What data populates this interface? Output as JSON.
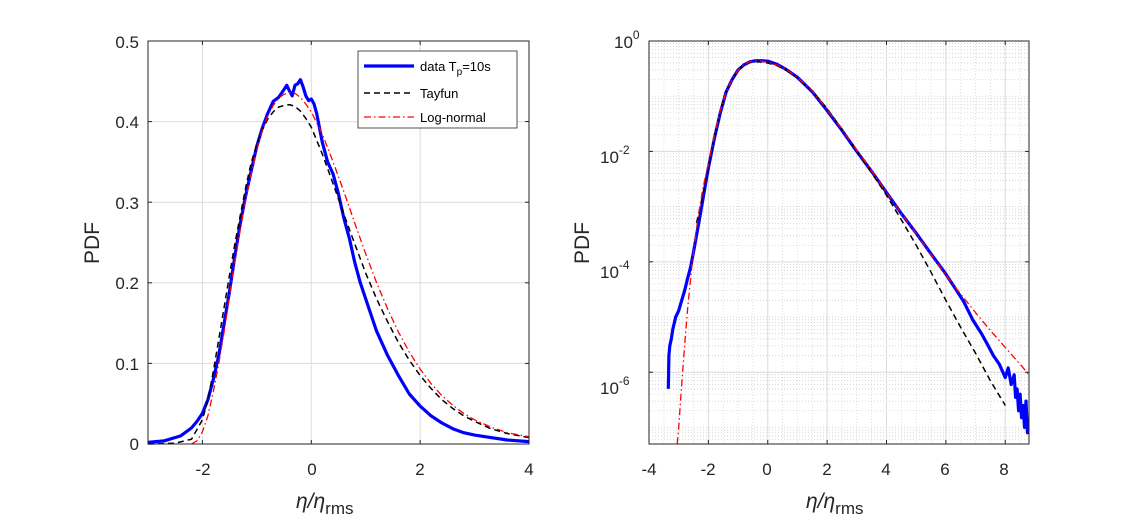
{
  "chart_data": [
    {
      "type": "line",
      "yscale": "linear",
      "xlabel": "η/η",
      "xlabel_sub": "rms",
      "ylabel": "PDF",
      "xlim": [
        -3,
        4
      ],
      "ylim": [
        0,
        0.5
      ],
      "xticks": [
        -2,
        0,
        2,
        4
      ],
      "xtick_labels": [
        "-2",
        "0",
        "2",
        "4"
      ],
      "yticks": [
        0,
        0.1,
        0.2,
        0.3,
        0.4,
        0.5
      ],
      "ytick_labels": [
        "0",
        "0.1",
        "0.2",
        "0.3",
        "0.4",
        "0.5"
      ],
      "grid": true,
      "legend": {
        "position": "top-right",
        "entries": [
          {
            "series": "data",
            "label_main": "data T",
            "label_sub": "p",
            "label_tail": "=10s"
          },
          {
            "series": "tayfun",
            "label_main": "Tayfun"
          },
          {
            "series": "lognormal",
            "label_main": "Log-normal"
          }
        ]
      },
      "series": [
        {
          "name": "data",
          "label": "data Tp=10s",
          "color": "#0000ff",
          "style": "solid",
          "x": [
            -3.0,
            -2.7,
            -2.4,
            -2.2,
            -2.1,
            -2.0,
            -1.9,
            -1.8,
            -1.7,
            -1.6,
            -1.5,
            -1.4,
            -1.3,
            -1.2,
            -1.1,
            -1.0,
            -0.9,
            -0.8,
            -0.7,
            -0.6,
            -0.5,
            -0.45,
            -0.4,
            -0.35,
            -0.3,
            -0.25,
            -0.2,
            -0.15,
            -0.1,
            -0.05,
            0.0,
            0.05,
            0.1,
            0.2,
            0.3,
            0.4,
            0.5,
            0.6,
            0.7,
            0.8,
            0.9,
            1.0,
            1.2,
            1.4,
            1.6,
            1.8,
            2.0,
            2.2,
            2.4,
            2.6,
            2.8,
            3.0,
            3.3,
            3.6,
            4.0
          ],
          "y": [
            0.002,
            0.004,
            0.01,
            0.02,
            0.028,
            0.038,
            0.055,
            0.08,
            0.11,
            0.15,
            0.19,
            0.235,
            0.275,
            0.31,
            0.34,
            0.37,
            0.392,
            0.41,
            0.425,
            0.43,
            0.44,
            0.445,
            0.438,
            0.432,
            0.445,
            0.447,
            0.452,
            0.443,
            0.432,
            0.426,
            0.428,
            0.422,
            0.41,
            0.375,
            0.35,
            0.335,
            0.31,
            0.28,
            0.255,
            0.225,
            0.2,
            0.18,
            0.14,
            0.11,
            0.085,
            0.062,
            0.047,
            0.035,
            0.026,
            0.019,
            0.014,
            0.011,
            0.008,
            0.005,
            0.003
          ]
        },
        {
          "name": "tayfun",
          "label": "Tayfun",
          "color": "#000000",
          "style": "dashed",
          "x": [
            -3.0,
            -2.5,
            -2.2,
            -2.0,
            -1.9,
            -1.8,
            -1.7,
            -1.6,
            -1.5,
            -1.4,
            -1.3,
            -1.2,
            -1.1,
            -1.0,
            -0.9,
            -0.8,
            -0.7,
            -0.6,
            -0.5,
            -0.4,
            -0.3,
            -0.2,
            -0.1,
            0.0,
            0.2,
            0.4,
            0.6,
            0.8,
            1.0,
            1.2,
            1.4,
            1.6,
            1.8,
            2.0,
            2.2,
            2.4,
            2.6,
            2.8,
            3.0,
            3.3,
            3.6,
            4.0
          ],
          "y": [
            0.0,
            0.001,
            0.006,
            0.03,
            0.055,
            0.09,
            0.13,
            0.17,
            0.21,
            0.25,
            0.285,
            0.32,
            0.35,
            0.372,
            0.39,
            0.403,
            0.412,
            0.418,
            0.42,
            0.421,
            0.419,
            0.413,
            0.404,
            0.393,
            0.36,
            0.323,
            0.285,
            0.248,
            0.212,
            0.18,
            0.152,
            0.126,
            0.104,
            0.085,
            0.069,
            0.055,
            0.044,
            0.035,
            0.028,
            0.019,
            0.013,
            0.008
          ]
        },
        {
          "name": "lognormal",
          "label": "Log-normal",
          "color": "#ff0000",
          "style": "dashdot",
          "x": [
            -2.2,
            -2.1,
            -2.0,
            -1.9,
            -1.8,
            -1.7,
            -1.6,
            -1.5,
            -1.4,
            -1.3,
            -1.2,
            -1.1,
            -1.0,
            -0.9,
            -0.8,
            -0.7,
            -0.6,
            -0.5,
            -0.4,
            -0.3,
            -0.2,
            -0.1,
            0.0,
            0.2,
            0.4,
            0.6,
            0.8,
            1.0,
            1.2,
            1.4,
            1.6,
            1.8,
            2.0,
            2.2,
            2.4,
            2.6,
            2.8,
            3.0,
            3.3,
            3.6,
            4.0
          ],
          "y": [
            0.0,
            0.004,
            0.015,
            0.035,
            0.065,
            0.1,
            0.14,
            0.185,
            0.228,
            0.268,
            0.305,
            0.337,
            0.365,
            0.389,
            0.407,
            0.42,
            0.429,
            0.434,
            0.436,
            0.435,
            0.43,
            0.422,
            0.412,
            0.385,
            0.35,
            0.313,
            0.274,
            0.236,
            0.2,
            0.168,
            0.139,
            0.114,
            0.093,
            0.075,
            0.06,
            0.048,
            0.038,
            0.03,
            0.021,
            0.014,
            0.009
          ]
        }
      ]
    },
    {
      "type": "line",
      "yscale": "log",
      "xlabel": "η/η",
      "xlabel_sub": "rms",
      "ylabel": "PDF",
      "xlim": [
        -4,
        8.8
      ],
      "ylim_log10": [
        -7.3,
        0
      ],
      "xticks": [
        -4,
        -2,
        0,
        2,
        4,
        6,
        8
      ],
      "xtick_labels": [
        "-4",
        "-2",
        "0",
        "2",
        "4",
        "6",
        "8"
      ],
      "yticks_log10": [
        -6,
        -4,
        -2,
        0
      ],
      "ytick_base": "10",
      "ytick_exponents": [
        "-6",
        "-4",
        "-2",
        "0"
      ],
      "grid": true,
      "minor_grid": true,
      "series": [
        {
          "name": "data",
          "color": "#0000ff",
          "style": "solid",
          "x": [
            -3.35,
            -3.33,
            -3.3,
            -3.25,
            -3.2,
            -3.1,
            -3.0,
            -2.9,
            -2.8,
            -2.7,
            -2.6,
            -2.5,
            -2.4,
            -2.3,
            -2.2,
            -2.1,
            -2.0,
            -1.8,
            -1.6,
            -1.4,
            -1.2,
            -1.0,
            -0.8,
            -0.6,
            -0.4,
            -0.2,
            0.0,
            0.3,
            0.6,
            1.0,
            1.5,
            2.0,
            2.5,
            3.0,
            3.5,
            4.0,
            4.5,
            5.0,
            5.5,
            6.0,
            6.3,
            6.6,
            6.9,
            7.2,
            7.4,
            7.6,
            7.8,
            8.0,
            8.1,
            8.2,
            8.3,
            8.35,
            8.4,
            8.45,
            8.5,
            8.55,
            8.6,
            8.65,
            8.7,
            8.75,
            8.8
          ],
          "y": [
            5e-07,
            2e-06,
            3e-06,
            4e-06,
            6e-06,
            1e-05,
            1.3e-05,
            2e-05,
            3e-05,
            5e-05,
            8e-05,
            0.00015,
            0.0003,
            0.0006,
            0.0012,
            0.0025,
            0.005,
            0.017,
            0.05,
            0.12,
            0.2,
            0.3,
            0.37,
            0.42,
            0.44,
            0.44,
            0.43,
            0.38,
            0.31,
            0.22,
            0.12,
            0.055,
            0.024,
            0.01,
            0.0043,
            0.0018,
            0.00075,
            0.00033,
            0.00014,
            6e-05,
            3.4e-05,
            1.9e-05,
            9e-06,
            5e-06,
            3.2e-06,
            2e-06,
            1.4e-06,
            8e-07,
            1.2e-06,
            6e-07,
            9e-07,
            3.5e-07,
            5e-07,
            2e-07,
            4e-07,
            1.5e-07,
            2.5e-07,
            1e-07,
            3e-07,
            8e-08,
            1.5e-07
          ]
        },
        {
          "name": "tayfun",
          "color": "#000000",
          "style": "dashed",
          "x": [
            -2.4,
            -2.2,
            -2.0,
            -1.8,
            -1.6,
            -1.4,
            -1.2,
            -1.0,
            -0.8,
            -0.6,
            -0.4,
            -0.2,
            0.0,
            0.3,
            0.6,
            1.0,
            1.5,
            2.0,
            2.5,
            3.0,
            3.5,
            4.0,
            4.5,
            5.0,
            5.5,
            6.0,
            6.5,
            7.0,
            7.5,
            8.0
          ],
          "y": [
            0.0005,
            0.0015,
            0.005,
            0.018,
            0.055,
            0.12,
            0.2,
            0.3,
            0.37,
            0.41,
            0.42,
            0.415,
            0.4,
            0.36,
            0.3,
            0.215,
            0.125,
            0.06,
            0.025,
            0.01,
            0.0041,
            0.0016,
            0.00058,
            0.0002,
            6.5e-05,
            2e-05,
            6.5e-06,
            2.2e-06,
            7e-07,
            2.5e-07
          ]
        },
        {
          "name": "lognormal",
          "color": "#ff0000",
          "style": "dashdot",
          "x": [
            -3.05,
            -3.0,
            -2.9,
            -2.8,
            -2.7,
            -2.6,
            -2.5,
            -2.4,
            -2.3,
            -2.2,
            -2.1,
            -2.0,
            -1.8,
            -1.6,
            -1.4,
            -1.2,
            -1.0,
            -0.8,
            -0.6,
            -0.4,
            -0.2,
            0.0,
            0.3,
            0.6,
            1.0,
            1.5,
            2.0,
            2.5,
            3.0,
            3.5,
            4.0,
            4.5,
            5.0,
            5.5,
            6.0,
            6.5,
            7.0,
            7.5,
            8.0,
            8.5,
            8.8
          ],
          "y": [
            5e-08,
            1e-07,
            6e-07,
            3e-06,
            1.4e-05,
            5e-05,
            0.00015,
            0.0004,
            0.0009,
            0.0019,
            0.0035,
            0.006,
            0.019,
            0.055,
            0.12,
            0.2,
            0.3,
            0.37,
            0.42,
            0.435,
            0.43,
            0.41,
            0.37,
            0.31,
            0.22,
            0.125,
            0.058,
            0.025,
            0.0105,
            0.0044,
            0.0018,
            0.00075,
            0.00032,
            0.000135,
            5.8e-05,
            2.6e-05,
            1.2e-05,
            5.7e-06,
            2.8e-06,
            1.4e-06,
            9e-07
          ]
        }
      ]
    }
  ]
}
